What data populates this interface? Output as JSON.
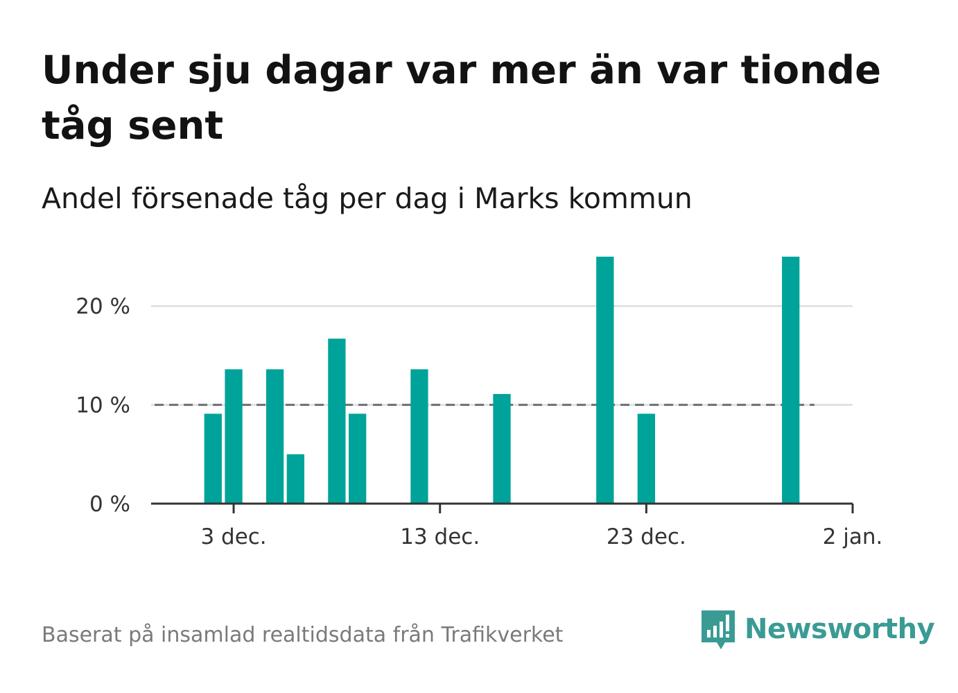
{
  "title": "Under sju dagar var mer än var tionde tåg sent",
  "subtitle": "Andel försenade tåg per dag i Marks kommun",
  "source": "Baserat på insamlad realtidsdata från Trafikverket",
  "brand": {
    "name": "Newsworthy",
    "icon": "newsworthy-logo-icon",
    "color": "#3a9b94"
  },
  "chart_data": {
    "type": "bar",
    "series": [
      {
        "values": [
          {
            "date": "2023-12-02",
            "value": 9.1
          },
          {
            "date": "2023-12-03",
            "value": 13.6
          },
          {
            "date": "2023-12-05",
            "value": 13.6
          },
          {
            "date": "2023-12-06",
            "value": 5.0
          },
          {
            "date": "2023-12-08",
            "value": 16.7
          },
          {
            "date": "2023-12-09",
            "value": 9.1
          },
          {
            "date": "2023-12-12",
            "value": 13.6
          },
          {
            "date": "2023-12-16",
            "value": 11.1
          },
          {
            "date": "2023-12-21",
            "value": 25.0
          },
          {
            "date": "2023-12-23",
            "value": 9.1
          },
          {
            "date": "2023-12-30",
            "value": 25.0
          }
        ]
      }
    ],
    "reference_line": {
      "value": 10,
      "style": "dashed",
      "from": "2023-11-29",
      "to": "2024-01-01"
    },
    "x_ticks": [
      {
        "date": "2023-12-03",
        "label": "3 dec."
      },
      {
        "date": "2023-12-13",
        "label": "13 dec."
      },
      {
        "date": "2023-12-23",
        "label": "23 dec."
      },
      {
        "date": "2024-01-02",
        "label": "2 jan."
      }
    ],
    "xlim": [
      "2023-11-29",
      "2024-01-02"
    ],
    "y_ticks": [
      {
        "value": 0,
        "label": "0 %"
      },
      {
        "value": 10,
        "label": "10 %"
      },
      {
        "value": 20,
        "label": "20 %"
      }
    ],
    "ylim": [
      0,
      25
    ],
    "grid": true,
    "colors": {
      "bar": "#00a39a",
      "reference": "#6e6e73",
      "grid": "#dddddd",
      "axis": "#333333"
    }
  }
}
